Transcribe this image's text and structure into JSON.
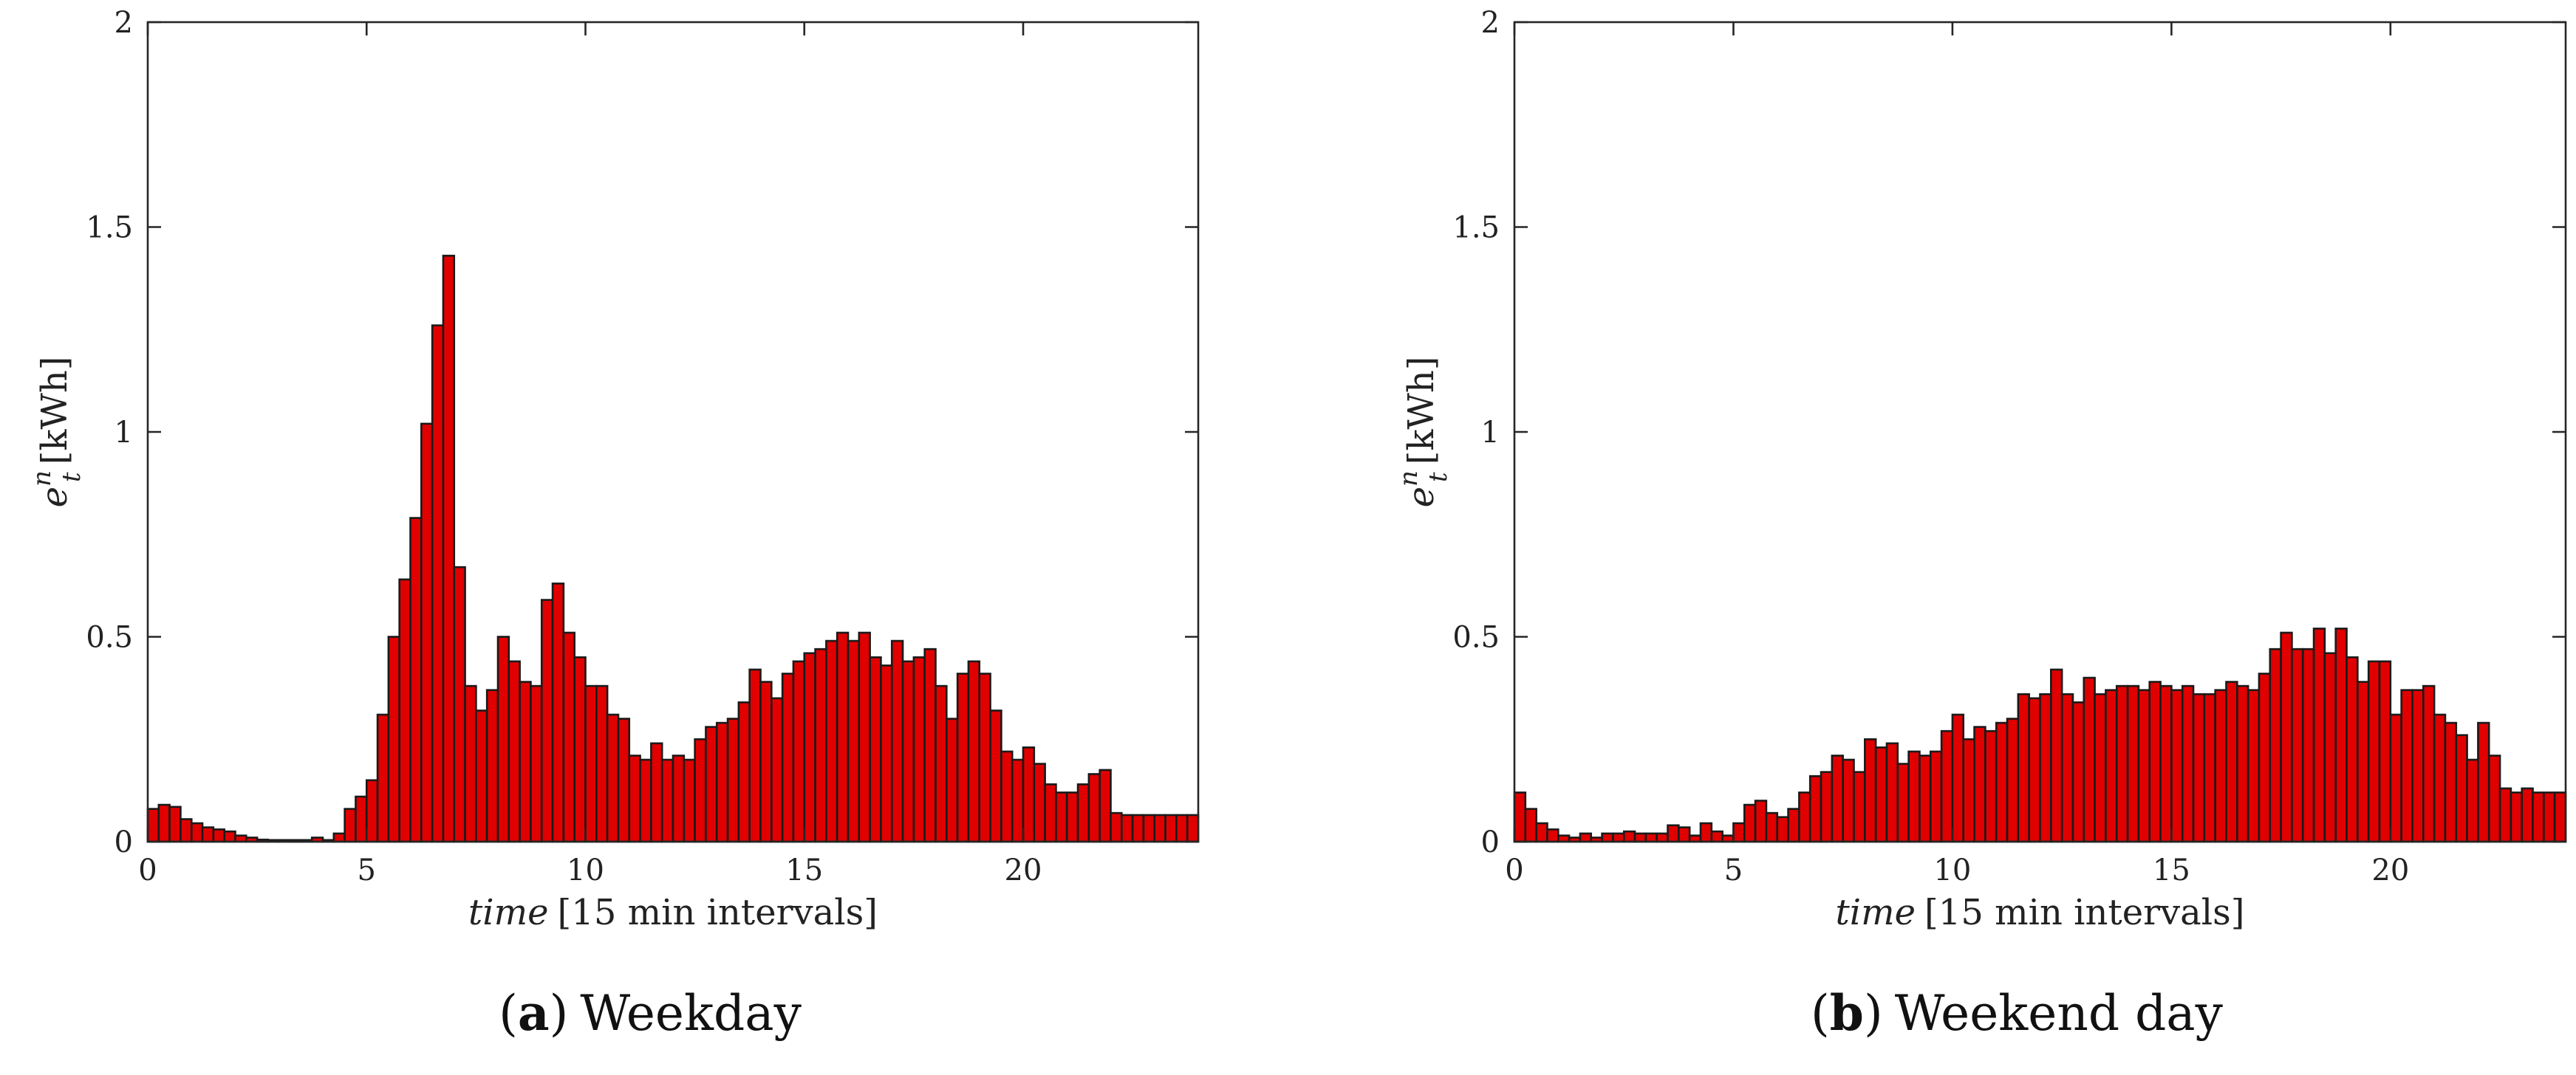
{
  "chart_data": [
    {
      "type": "bar",
      "caption": {
        "letter": "a",
        "text": "Weekday"
      },
      "xlabel": {
        "italic": "time",
        "rest": "[15 min intervals]"
      },
      "ylabel": {
        "base": "e",
        "sup": "n",
        "sub": "t",
        "unit": "[kWh]"
      },
      "xlim": [
        0,
        24
      ],
      "ylim": [
        0,
        2
      ],
      "xticks": [
        "0",
        "5",
        "10",
        "15",
        "20"
      ],
      "yticks": [
        "0",
        "0.5",
        "1",
        "1.5",
        "2"
      ],
      "grid": false,
      "bar_color": "#e00000",
      "x": [
        0.125,
        0.375,
        0.625,
        0.875,
        1.125,
        1.375,
        1.625,
        1.875,
        2.125,
        2.375,
        2.625,
        2.875,
        3.125,
        3.375,
        3.625,
        3.875,
        4.125,
        4.375,
        4.625,
        4.875,
        5.125,
        5.375,
        5.625,
        5.875,
        6.125,
        6.375,
        6.625,
        6.875,
        7.125,
        7.375,
        7.625,
        7.875,
        8.125,
        8.375,
        8.625,
        8.875,
        9.125,
        9.375,
        9.625,
        9.875,
        10.125,
        10.375,
        10.625,
        10.875,
        11.125,
        11.375,
        11.625,
        11.875,
        12.125,
        12.375,
        12.625,
        12.875,
        13.125,
        13.375,
        13.625,
        13.875,
        14.125,
        14.375,
        14.625,
        14.875,
        15.125,
        15.375,
        15.625,
        15.875,
        16.125,
        16.375,
        16.625,
        16.875,
        17.125,
        17.375,
        17.625,
        17.875,
        18.125,
        18.375,
        18.625,
        18.875,
        19.125,
        19.375,
        19.625,
        19.875,
        20.125,
        20.375,
        20.625,
        20.875,
        21.125,
        21.375,
        21.625,
        21.875,
        22.125,
        22.375,
        22.625,
        22.875,
        23.125,
        23.375,
        23.625,
        23.875
      ],
      "values": [
        0.08,
        0.09,
        0.085,
        0.055,
        0.045,
        0.035,
        0.03,
        0.025,
        0.015,
        0.01,
        0.005,
        0.004,
        0.004,
        0.004,
        0.004,
        0.01,
        0.004,
        0.02,
        0.08,
        0.11,
        0.15,
        0.31,
        0.5,
        0.64,
        0.79,
        1.02,
        1.26,
        1.43,
        0.67,
        0.38,
        0.32,
        0.37,
        0.5,
        0.44,
        0.39,
        0.38,
        0.59,
        0.63,
        0.51,
        0.45,
        0.38,
        0.38,
        0.31,
        0.3,
        0.21,
        0.2,
        0.24,
        0.2,
        0.21,
        0.2,
        0.25,
        0.28,
        0.29,
        0.3,
        0.34,
        0.42,
        0.39,
        0.35,
        0.41,
        0.44,
        0.46,
        0.47,
        0.49,
        0.51,
        0.49,
        0.51,
        0.45,
        0.43,
        0.49,
        0.44,
        0.45,
        0.47,
        0.38,
        0.3,
        0.41,
        0.44,
        0.41,
        0.32,
        0.22,
        0.2,
        0.23,
        0.19,
        0.14,
        0.12,
        0.12,
        0.14,
        0.165,
        0.175,
        0.07,
        0.065,
        0.065,
        0.065,
        0.065,
        0.065,
        0.065,
        0.065
      ]
    },
    {
      "type": "bar",
      "caption": {
        "letter": "b",
        "text": "Weekend day"
      },
      "xlabel": {
        "italic": "time",
        "rest": "[15 min intervals]"
      },
      "ylabel": {
        "base": "e",
        "sup": "n",
        "sub": "t",
        "unit": "[kWh]"
      },
      "xlim": [
        0,
        24
      ],
      "ylim": [
        0,
        2
      ],
      "xticks": [
        "0",
        "5",
        "10",
        "15",
        "20"
      ],
      "yticks": [
        "0",
        "0.5",
        "1",
        "1.5",
        "2"
      ],
      "grid": false,
      "bar_color": "#e00000",
      "x": [
        0.125,
        0.375,
        0.625,
        0.875,
        1.125,
        1.375,
        1.625,
        1.875,
        2.125,
        2.375,
        2.625,
        2.875,
        3.125,
        3.375,
        3.625,
        3.875,
        4.125,
        4.375,
        4.625,
        4.875,
        5.125,
        5.375,
        5.625,
        5.875,
        6.125,
        6.375,
        6.625,
        6.875,
        7.125,
        7.375,
        7.625,
        7.875,
        8.125,
        8.375,
        8.625,
        8.875,
        9.125,
        9.375,
        9.625,
        9.875,
        10.125,
        10.375,
        10.625,
        10.875,
        11.125,
        11.375,
        11.625,
        11.875,
        12.125,
        12.375,
        12.625,
        12.875,
        13.125,
        13.375,
        13.625,
        13.875,
        14.125,
        14.375,
        14.625,
        14.875,
        15.125,
        15.375,
        15.625,
        15.875,
        16.125,
        16.375,
        16.625,
        16.875,
        17.125,
        17.375,
        17.625,
        17.875,
        18.125,
        18.375,
        18.625,
        18.875,
        19.125,
        19.375,
        19.625,
        19.875,
        20.125,
        20.375,
        20.625,
        20.875,
        21.125,
        21.375,
        21.625,
        21.875,
        22.125,
        22.375,
        22.625,
        22.875,
        23.125,
        23.375,
        23.625,
        23.875
      ],
      "values": [
        0.12,
        0.08,
        0.045,
        0.03,
        0.015,
        0.01,
        0.02,
        0.01,
        0.02,
        0.02,
        0.025,
        0.02,
        0.02,
        0.02,
        0.04,
        0.035,
        0.015,
        0.045,
        0.025,
        0.015,
        0.045,
        0.09,
        0.1,
        0.07,
        0.06,
        0.08,
        0.12,
        0.16,
        0.17,
        0.21,
        0.2,
        0.17,
        0.25,
        0.23,
        0.24,
        0.19,
        0.22,
        0.21,
        0.22,
        0.27,
        0.31,
        0.25,
        0.28,
        0.27,
        0.29,
        0.3,
        0.36,
        0.35,
        0.36,
        0.42,
        0.36,
        0.34,
        0.4,
        0.36,
        0.37,
        0.38,
        0.38,
        0.37,
        0.39,
        0.38,
        0.37,
        0.38,
        0.36,
        0.36,
        0.37,
        0.39,
        0.38,
        0.37,
        0.41,
        0.47,
        0.51,
        0.47,
        0.47,
        0.52,
        0.46,
        0.52,
        0.45,
        0.39,
        0.44,
        0.44,
        0.31,
        0.37,
        0.37,
        0.38,
        0.31,
        0.29,
        0.26,
        0.2,
        0.29,
        0.21,
        0.13,
        0.12,
        0.13,
        0.12,
        0.12,
        0.12
      ]
    }
  ]
}
